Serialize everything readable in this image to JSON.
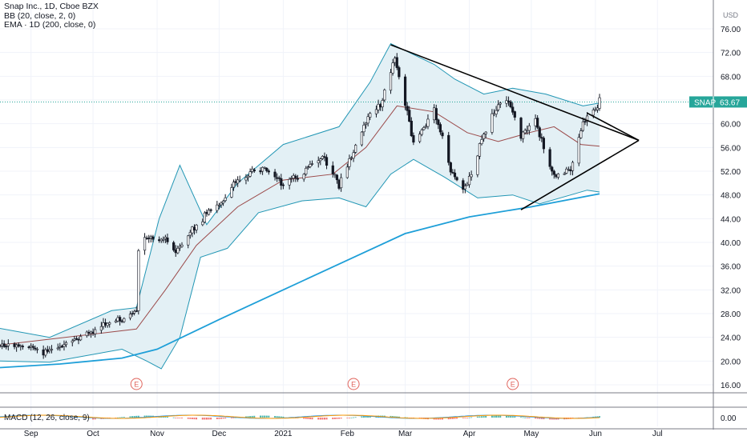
{
  "legend": {
    "main": "Snap Inc., 1D, Cboe BZX",
    "bb": "BB (20, close, 2, 0)",
    "ema": "EMA · 1D (200, close, 0)"
  },
  "currency": "USD",
  "price_tag": {
    "symbol": "SNAP",
    "price": "63.67"
  },
  "earnings_marker": "E",
  "macd": {
    "label": "MACD (12, 26, close, 9)",
    "tick": "0.00"
  },
  "colors": {
    "up": "#26a69a",
    "down": "#ef5350",
    "candle_body": "#131722",
    "bb_band": "#2196b4",
    "bb_fill": "#e3f0f5",
    "bb_basis": "#9b4a4a",
    "ema": "#1e9fd8",
    "trendline": "#000000",
    "price_tag_bg": "#26a69a",
    "earnings": "#e0645c"
  },
  "chart_data": {
    "type": "candlestick",
    "title": "Snap Inc., 1D, Cboe BZX",
    "ylim": [
      14,
      80
    ],
    "y_ticks": [
      "76.00",
      "72.00",
      "68.00",
      "64.00",
      "60.00",
      "56.00",
      "52.00",
      "48.00",
      "44.00",
      "40.00",
      "36.00",
      "32.00",
      "28.00",
      "24.00",
      "20.00",
      "16.00"
    ],
    "x_ticks": [
      "Sep",
      "Oct",
      "Nov",
      "Dec",
      "2021",
      "Feb",
      "Mar",
      "Apr",
      "May",
      "Jun",
      "Jul"
    ],
    "last_price": 63.67,
    "close_path": [
      [
        "2020-08-24",
        22.6
      ],
      [
        "2020-09-01",
        22.3
      ],
      [
        "2020-09-07",
        21.4
      ],
      [
        "2020-09-14",
        22.4
      ],
      [
        "2020-09-21",
        23.3
      ],
      [
        "2020-10-01",
        25.0
      ],
      [
        "2020-10-08",
        26.5
      ],
      [
        "2020-10-15",
        27.0
      ],
      [
        "2020-10-22",
        28.5
      ],
      [
        "2020-10-23",
        38.5
      ],
      [
        "2020-10-26",
        41.0
      ],
      [
        "2020-11-05",
        40.5
      ],
      [
        "2020-11-10",
        38.2
      ],
      [
        "2020-11-20",
        43.0
      ],
      [
        "2020-12-01",
        46.5
      ],
      [
        "2020-12-10",
        50.5
      ],
      [
        "2020-12-20",
        52.5
      ],
      [
        "2021-01-01",
        49.8
      ],
      [
        "2021-01-10",
        51.5
      ],
      [
        "2021-01-20",
        54.5
      ],
      [
        "2021-01-28",
        49.5
      ],
      [
        "2021-02-05",
        56.0
      ],
      [
        "2021-02-10",
        60.5
      ],
      [
        "2021-02-18",
        64.0
      ],
      [
        "2021-02-24",
        71.5
      ],
      [
        "2021-03-01",
        63.0
      ],
      [
        "2021-03-05",
        57.0
      ],
      [
        "2021-03-15",
        62.0
      ],
      [
        "2021-03-24",
        51.0
      ],
      [
        "2021-03-30",
        49.2
      ],
      [
        "2021-04-05",
        55.0
      ],
      [
        "2021-04-12",
        61.5
      ],
      [
        "2021-04-20",
        64.0
      ],
      [
        "2021-04-26",
        58.0
      ],
      [
        "2021-05-03",
        60.0
      ],
      [
        "2021-05-12",
        51.0
      ],
      [
        "2021-05-20",
        52.5
      ],
      [
        "2021-05-26",
        60.0
      ],
      [
        "2021-06-03",
        63.67
      ]
    ],
    "bb_upper": [
      [
        "2020-08-17",
        25.5
      ],
      [
        "2020-09-10",
        24.0
      ],
      [
        "2020-10-10",
        28.5
      ],
      [
        "2020-10-22",
        29.0
      ],
      [
        "2020-11-02",
        44.0
      ],
      [
        "2020-11-12",
        53.0
      ],
      [
        "2020-11-25",
        43.0
      ],
      [
        "2020-12-10",
        50.0
      ],
      [
        "2021-01-01",
        56.5
      ],
      [
        "2021-01-28",
        59.5
      ],
      [
        "2021-02-12",
        67.0
      ],
      [
        "2021-02-22",
        73.5
      ],
      [
        "2021-03-03",
        72.0
      ],
      [
        "2021-03-15",
        70.0
      ],
      [
        "2021-03-25",
        67.5
      ],
      [
        "2021-04-08",
        65.0
      ],
      [
        "2021-04-22",
        66.0
      ],
      [
        "2021-05-08",
        65.0
      ],
      [
        "2021-05-26",
        63.0
      ],
      [
        "2021-06-03",
        63.5
      ]
    ],
    "bb_lower": [
      [
        "2020-08-17",
        20.0
      ],
      [
        "2020-09-10",
        19.8
      ],
      [
        "2020-10-15",
        22.0
      ],
      [
        "2020-10-27",
        20.0
      ],
      [
        "2020-11-03",
        18.7
      ],
      [
        "2020-11-12",
        24.0
      ],
      [
        "2020-11-22",
        37.5
      ],
      [
        "2020-12-05",
        39.0
      ],
      [
        "2020-12-20",
        45.0
      ],
      [
        "2021-01-10",
        47.0
      ],
      [
        "2021-01-28",
        47.5
      ],
      [
        "2021-02-10",
        46.0
      ],
      [
        "2021-02-22",
        51.5
      ],
      [
        "2021-03-05",
        54.0
      ],
      [
        "2021-03-20",
        51.0
      ],
      [
        "2021-04-05",
        47.5
      ],
      [
        "2021-04-22",
        48.0
      ],
      [
        "2021-05-05",
        46.5
      ],
      [
        "2021-05-20",
        48.0
      ],
      [
        "2021-05-28",
        48.8
      ],
      [
        "2021-06-03",
        48.5
      ]
    ],
    "bb_basis": [
      [
        "2020-08-17",
        22.7
      ],
      [
        "2020-10-22",
        25.4
      ],
      [
        "2020-11-05",
        32.0
      ],
      [
        "2020-11-20",
        39.5
      ],
      [
        "2020-12-10",
        46.0
      ],
      [
        "2021-01-01",
        50.5
      ],
      [
        "2021-01-25",
        51.5
      ],
      [
        "2021-02-10",
        56.0
      ],
      [
        "2021-02-25",
        63.0
      ],
      [
        "2021-03-15",
        62.0
      ],
      [
        "2021-03-31",
        58.5
      ],
      [
        "2021-04-15",
        57.0
      ],
      [
        "2021-04-30",
        58.5
      ],
      [
        "2021-05-12",
        59.5
      ],
      [
        "2021-05-25",
        56.5
      ],
      [
        "2021-06-03",
        56.2
      ]
    ],
    "ema200": [
      [
        "2020-08-17",
        18.9
      ],
      [
        "2020-09-15",
        19.5
      ],
      [
        "2020-10-15",
        20.5
      ],
      [
        "2020-11-01",
        22.0
      ],
      [
        "2020-12-01",
        27.0
      ],
      [
        "2021-01-01",
        32.0
      ],
      [
        "2021-02-01",
        37.0
      ],
      [
        "2021-03-01",
        41.5
      ],
      [
        "2021-04-01",
        44.3
      ],
      [
        "2021-05-01",
        46.0
      ],
      [
        "2021-06-03",
        48.2
      ]
    ],
    "trendlines": [
      {
        "from": [
          "2021-02-22",
          73.3
        ],
        "to": [
          "2021-06-22",
          57.2
        ]
      },
      {
        "from": [
          "2021-04-26",
          45.5
        ],
        "to": [
          "2021-06-22",
          57.2
        ]
      }
    ],
    "earnings_dates": [
      "2020-10-22",
      "2021-02-04",
      "2021-04-22"
    ]
  }
}
